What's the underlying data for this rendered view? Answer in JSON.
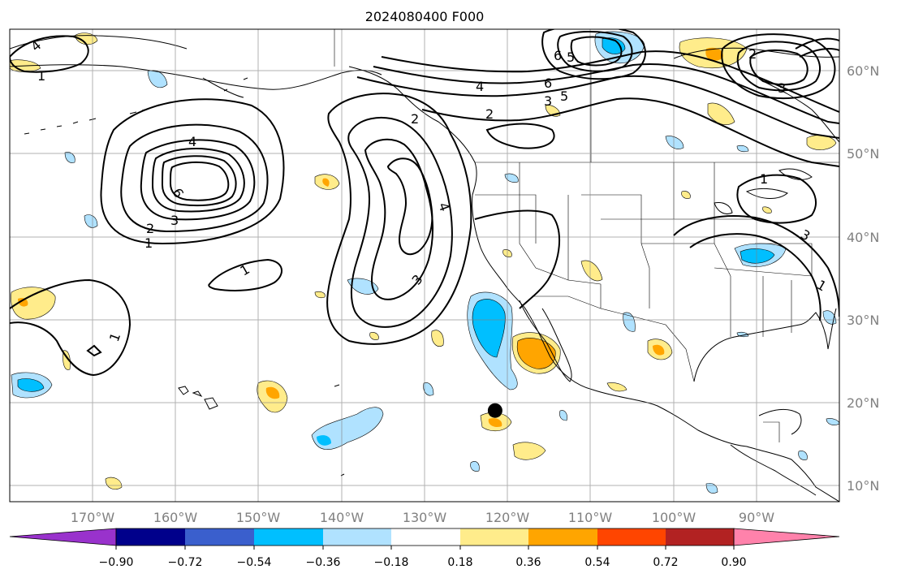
{
  "title": "2024080400 F000",
  "lat_ticks": [
    "60°N",
    "50°N",
    "40°N",
    "30°N",
    "20°N",
    "10°N"
  ],
  "lon_ticks": [
    "170°W",
    "160°W",
    "150°W",
    "140°W",
    "130°W",
    "120°W",
    "110°W",
    "100°W",
    "90°W"
  ],
  "colorbar": {
    "colors": [
      "#9932cc",
      "#00008b",
      "#3a5fcd",
      "#00bfff",
      "#b0e2ff",
      "#ffffff",
      "#ffec8b",
      "#ffa500",
      "#ff4500",
      "#b22222",
      "#ff82ab"
    ],
    "labels": [
      "−0.90",
      "−0.72",
      "−0.54",
      "−0.36",
      "−0.18",
      "0.18",
      "0.36",
      "0.54",
      "0.72",
      "0.90"
    ]
  },
  "contour_labels": [
    "4",
    "6",
    "2",
    "3",
    "1",
    "1",
    "1",
    "3",
    "4",
    "2",
    "4",
    "6",
    "5",
    "3",
    "2",
    "1",
    "3",
    "1",
    "4",
    "6",
    "5",
    "3",
    "2",
    "1"
  ],
  "marker": {
    "name": "black-dot",
    "lon": -121.5,
    "lat": 19.0
  }
}
